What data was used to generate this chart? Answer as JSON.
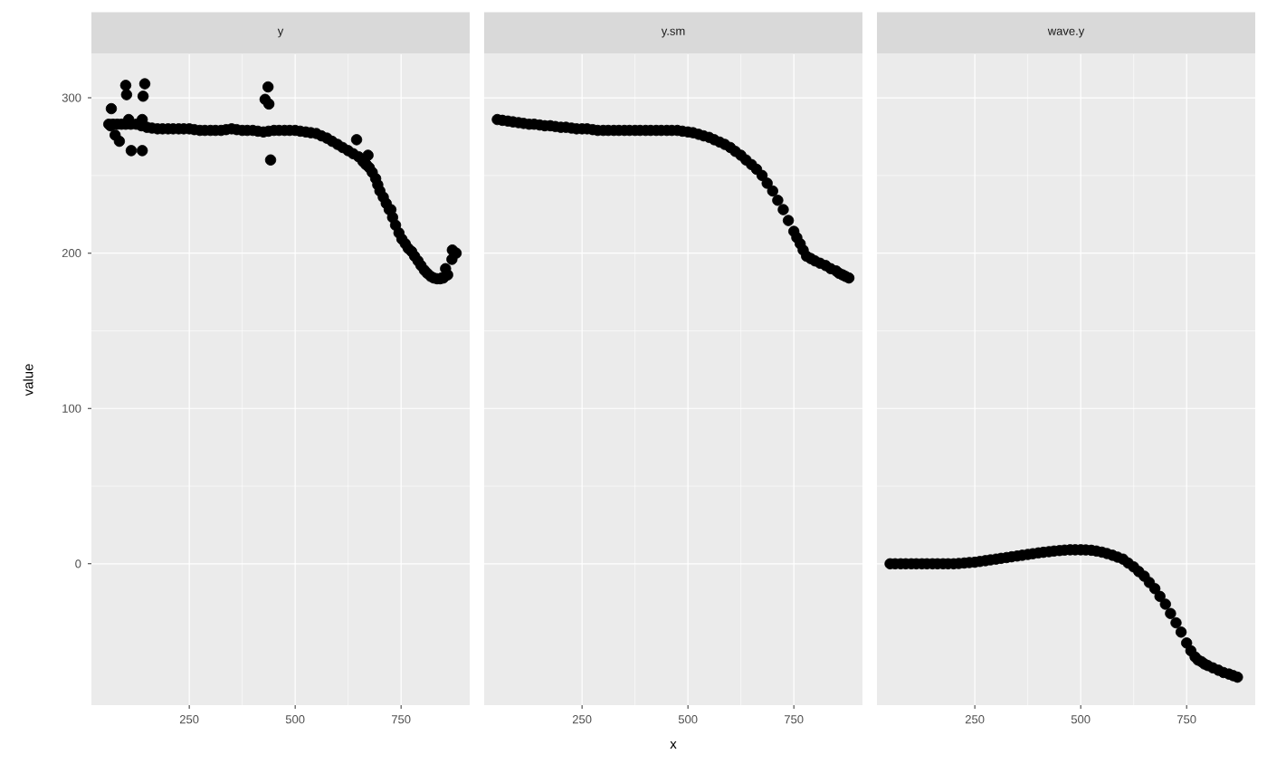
{
  "chart_data": [
    {
      "type": "scatter",
      "title": "y",
      "ylabel": "value",
      "color": "#000000",
      "marker": "circle",
      "grid": true,
      "tick_labels": true,
      "xlim": [
        19,
        912
      ],
      "ylim": [
        -91,
        328
      ],
      "xticks": [
        250,
        500,
        750
      ],
      "yticks": [
        0,
        100,
        200,
        300
      ],
      "x": [
        60,
        80,
        100,
        125,
        150,
        175,
        200,
        225,
        250,
        275,
        300,
        325,
        350,
        375,
        400,
        425,
        450,
        475,
        500,
        525,
        550,
        575,
        600,
        625,
        650,
        660,
        675,
        690,
        700,
        715,
        730,
        745,
        760,
        775,
        790,
        805,
        820,
        835,
        850,
        860,
        870,
        880,
        66,
        64,
        85,
        75,
        107,
        139,
        113,
        139,
        100,
        102,
        145,
        141,
        436,
        429,
        438,
        442,
        645,
        672,
        668,
        726,
        855,
        846,
        871,
        70,
        90,
        112,
        137,
        162,
        187,
        212,
        237,
        262,
        287,
        312,
        337,
        362,
        387,
        412,
        437,
        462,
        487,
        512,
        537,
        562,
        587,
        612,
        637,
        667,
        682,
        695,
        708,
        722,
        737,
        752,
        767,
        782,
        797,
        812,
        827,
        842
      ],
      "values": [
        283,
        283,
        283,
        283,
        281,
        280,
        280,
        280,
        280,
        279,
        279,
        279,
        280,
        279,
        279,
        278,
        279,
        279,
        279,
        278,
        277,
        274,
        270,
        266,
        262,
        259,
        255,
        248,
        240,
        232,
        223,
        213,
        206,
        201,
        195,
        189,
        185,
        183.5,
        184,
        186,
        196,
        200,
        293,
        282,
        272,
        276,
        286,
        286,
        266,
        266,
        308,
        302,
        309,
        301,
        307,
        299,
        296,
        260,
        273,
        263,
        257,
        228,
        190,
        184,
        202,
        283,
        283,
        283,
        282,
        280.5,
        280,
        280,
        280,
        279.5,
        279,
        279,
        279.5,
        279.5,
        279,
        278.5,
        278.5,
        279,
        279,
        278.5,
        277.5,
        275.5,
        272,
        268,
        264,
        257,
        252,
        244,
        236,
        228,
        218,
        209,
        203,
        198,
        192,
        187,
        184,
        183.5
      ]
    },
    {
      "type": "scatter",
      "title": "y.sm",
      "xlabel": "x",
      "color": "#000000",
      "marker": "circle",
      "grid": true,
      "tick_labels": "x",
      "xlim": [
        19,
        912
      ],
      "ylim": [
        -91,
        328
      ],
      "xticks": [
        250,
        500,
        750
      ],
      "yticks": [
        0,
        100,
        200,
        300
      ],
      "x": [
        50,
        75,
        100,
        125,
        150,
        175,
        200,
        225,
        250,
        275,
        300,
        325,
        350,
        375,
        400,
        425,
        450,
        475,
        500,
        525,
        550,
        575,
        600,
        625,
        650,
        675,
        700,
        725,
        750,
        765,
        780,
        800,
        825,
        850,
        865,
        880,
        62,
        87,
        112,
        137,
        162,
        187,
        212,
        237,
        262,
        287,
        312,
        337,
        362,
        387,
        412,
        437,
        462,
        487,
        512,
        537,
        562,
        587,
        612,
        637,
        662,
        687,
        712,
        737,
        757,
        772,
        790,
        812,
        837,
        857,
        872
      ],
      "values": [
        286,
        285,
        284,
        283,
        282.5,
        282,
        281,
        280.5,
        280,
        279.5,
        279,
        279,
        279,
        279,
        279,
        279,
        279,
        279,
        278,
        276.5,
        274.5,
        271.5,
        268,
        263,
        257,
        250,
        240,
        228,
        214,
        206,
        198,
        195,
        192,
        188.5,
        186,
        184,
        285.5,
        284.5,
        283.5,
        283,
        282,
        281.5,
        281,
        280,
        280,
        279,
        279,
        279,
        279,
        279,
        279,
        279,
        279,
        278.5,
        277.5,
        275.5,
        273,
        270,
        265.5,
        260,
        254,
        245,
        234,
        221,
        210,
        202,
        196.5,
        193.5,
        190,
        187,
        185
      ]
    },
    {
      "type": "scatter",
      "title": "wave.y",
      "color": "#000000",
      "marker": "circle",
      "grid": true,
      "tick_labels": "x",
      "xlim": [
        19,
        912
      ],
      "ylim": [
        -91,
        328
      ],
      "xticks": [
        250,
        500,
        750
      ],
      "yticks": [
        0,
        100,
        200,
        300
      ],
      "x": [
        50,
        75,
        100,
        125,
        150,
        175,
        200,
        225,
        250,
        275,
        300,
        325,
        350,
        375,
        400,
        425,
        450,
        475,
        500,
        525,
        550,
        575,
        600,
        625,
        650,
        675,
        700,
        725,
        750,
        770,
        785,
        800,
        825,
        850,
        870,
        62,
        87,
        112,
        137,
        162,
        187,
        212,
        237,
        262,
        287,
        312,
        337,
        362,
        387,
        412,
        437,
        462,
        487,
        512,
        537,
        562,
        587,
        612,
        637,
        662,
        687,
        712,
        737,
        760,
        777,
        792,
        812,
        837,
        860
      ],
      "values": [
        0,
        0,
        0,
        0,
        0,
        0,
        0,
        0.5,
        1,
        2,
        3,
        4,
        5,
        6,
        7,
        7.8,
        8.5,
        9,
        9,
        8.7,
        7.5,
        5.5,
        3,
        -2,
        -8,
        -16,
        -26,
        -38,
        -51,
        -60,
        -63,
        -65.5,
        -68.5,
        -71,
        -73,
        0,
        0,
        0,
        0,
        0,
        0,
        0.2,
        0.8,
        1.5,
        2.5,
        3.5,
        4.5,
        5.5,
        6.5,
        7.4,
        8.2,
        8.8,
        9,
        8.9,
        8.2,
        6.6,
        4.3,
        0.5,
        -5,
        -12,
        -21,
        -32,
        -44,
        -56,
        -62,
        -64.5,
        -67,
        -70,
        -72
      ]
    }
  ]
}
